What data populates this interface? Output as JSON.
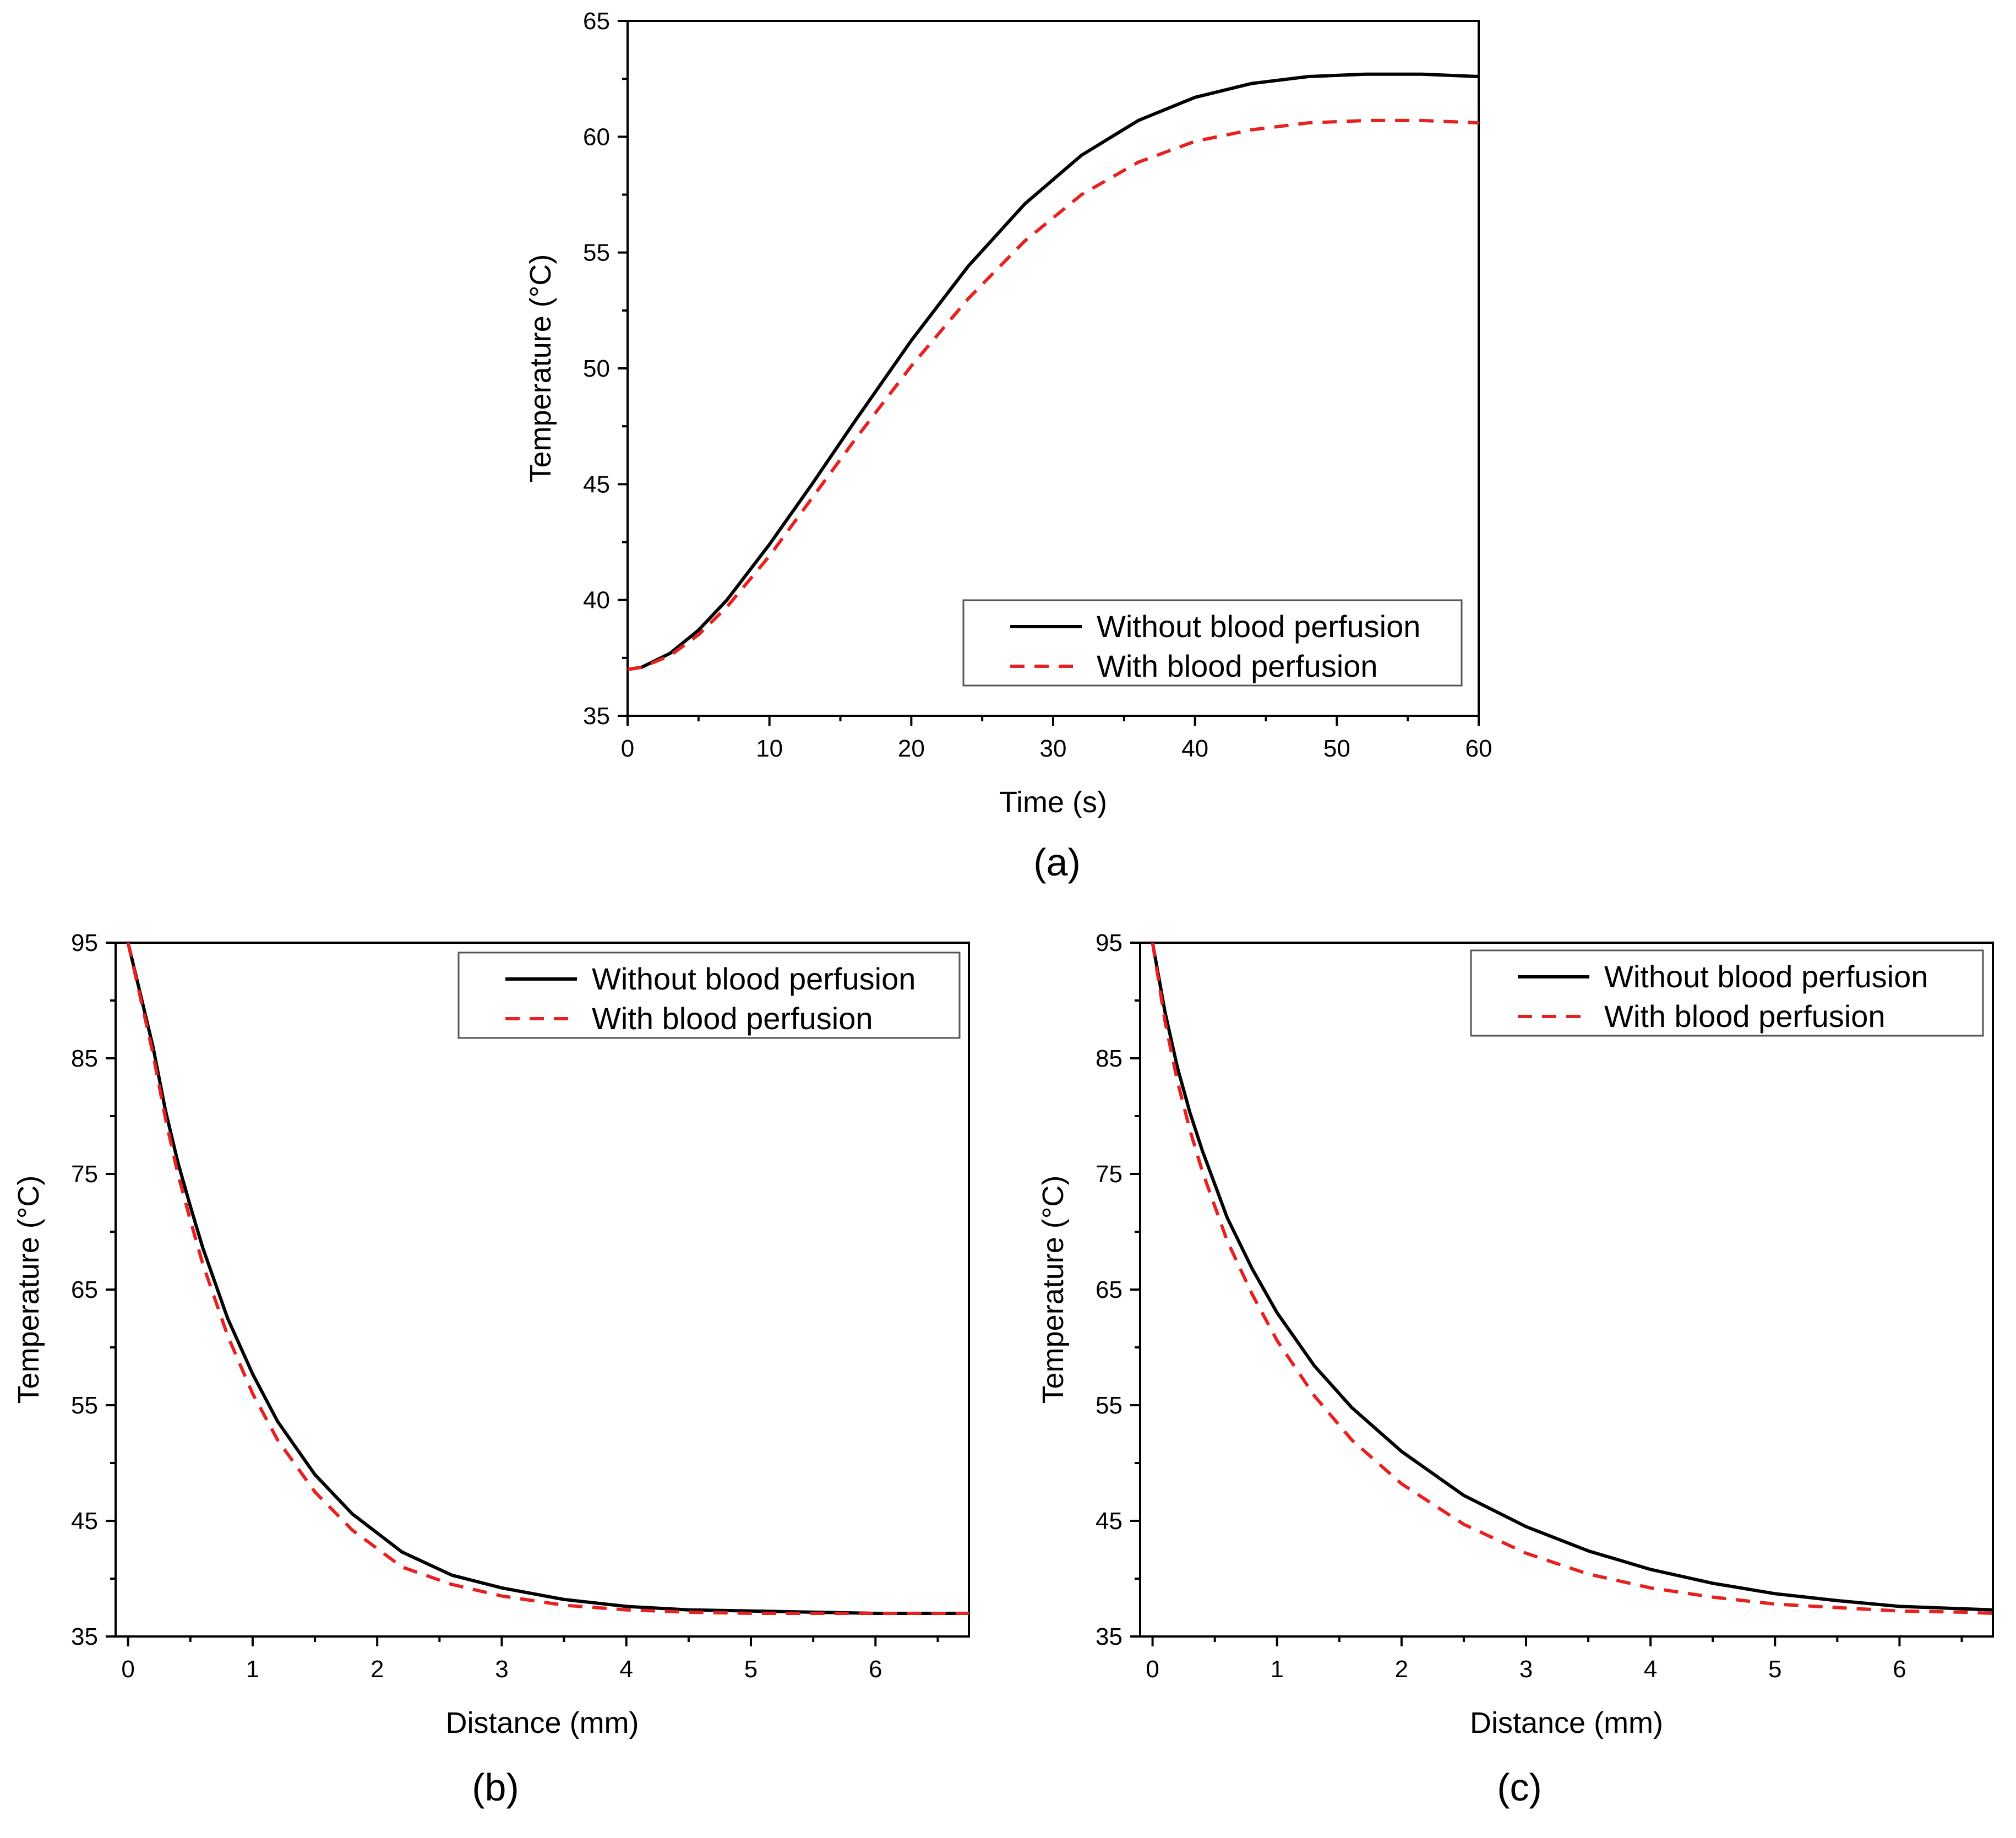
{
  "chart_data": [
    {
      "id": "a",
      "type": "line",
      "panel_label": "(a)",
      "title": "",
      "xlabel": "Time (s)",
      "ylabel": "Temperature (°C)",
      "xlim": [
        0,
        60
      ],
      "ylim": [
        35,
        65
      ],
      "xticks": [
        0,
        10,
        20,
        30,
        40,
        50,
        60
      ],
      "yticks": [
        35,
        40,
        45,
        50,
        55,
        60,
        65
      ],
      "grid": false,
      "legend_position": "bottom-right",
      "series": [
        {
          "name": "Without blood perfusion",
          "color": "#000000",
          "dash": "solid",
          "x": [
            0,
            1,
            3,
            5,
            7,
            10,
            13,
            16,
            20,
            24,
            28,
            32,
            36,
            40,
            44,
            48,
            52,
            56,
            60
          ],
          "y": [
            37.0,
            37.1,
            37.7,
            38.7,
            40.0,
            42.4,
            45.0,
            47.7,
            51.2,
            54.4,
            57.1,
            59.2,
            60.7,
            61.7,
            62.3,
            62.6,
            62.7,
            62.7,
            62.6
          ]
        },
        {
          "name": "With blood perfusion",
          "color": "#e8201f",
          "dash": "dashed",
          "x": [
            0,
            1,
            3,
            5,
            7,
            10,
            13,
            16,
            20,
            24,
            28,
            32,
            36,
            40,
            44,
            48,
            52,
            56,
            60
          ],
          "y": [
            37.0,
            37.1,
            37.6,
            38.5,
            39.7,
            41.9,
            44.4,
            46.9,
            50.1,
            53.0,
            55.5,
            57.5,
            58.9,
            59.8,
            60.3,
            60.6,
            60.7,
            60.7,
            60.6
          ]
        }
      ]
    },
    {
      "id": "b",
      "type": "line",
      "panel_label": "(b)",
      "title": "",
      "xlabel": "Distance (mm)",
      "ylabel": "Temperature (°C)",
      "xlim": [
        -0.1,
        6.75
      ],
      "ylim": [
        35,
        95
      ],
      "xticks": [
        0,
        1,
        2,
        3,
        4,
        5,
        6
      ],
      "yticks": [
        35,
        45,
        55,
        65,
        75,
        85,
        95
      ],
      "grid": false,
      "legend_position": "top-right",
      "series": [
        {
          "name": "Without blood perfusion",
          "color": "#000000",
          "dash": "solid",
          "x": [
            0,
            0.1,
            0.2,
            0.3,
            0.4,
            0.5,
            0.6,
            0.8,
            1.0,
            1.2,
            1.5,
            1.8,
            2.2,
            2.6,
            3.0,
            3.5,
            4.0,
            4.5,
            5.0,
            5.5,
            6.0,
            6.5,
            6.75
          ],
          "y": [
            95,
            90.5,
            86.0,
            80.5,
            76.0,
            72.2,
            68.6,
            62.5,
            57.7,
            53.6,
            49.0,
            45.6,
            42.3,
            40.3,
            39.2,
            38.2,
            37.6,
            37.3,
            37.2,
            37.1,
            37.0,
            37.0,
            37.0
          ]
        },
        {
          "name": "With blood perfusion",
          "color": "#e8201f",
          "dash": "dashed",
          "x": [
            0,
            0.1,
            0.2,
            0.3,
            0.4,
            0.5,
            0.6,
            0.8,
            1.0,
            1.2,
            1.5,
            1.8,
            2.2,
            2.6,
            3.0,
            3.5,
            4.0,
            4.5,
            5.0,
            5.5,
            6.0,
            6.5,
            6.75
          ],
          "y": [
            95,
            90.2,
            85.4,
            79.8,
            75.0,
            71.0,
            67.2,
            61.0,
            56.0,
            52.0,
            47.5,
            44.2,
            41.0,
            39.5,
            38.5,
            37.7,
            37.3,
            37.1,
            37.0,
            37.0,
            37.0,
            37.0,
            37.0
          ]
        }
      ]
    },
    {
      "id": "c",
      "type": "line",
      "panel_label": "(c)",
      "title": "",
      "xlabel": "Distance (mm)",
      "ylabel": "Temperature (°C)",
      "xlim": [
        -0.1,
        6.75
      ],
      "ylim": [
        35,
        95
      ],
      "xticks": [
        0,
        1,
        2,
        3,
        4,
        5,
        6
      ],
      "yticks": [
        35,
        45,
        55,
        65,
        75,
        85,
        95
      ],
      "grid": false,
      "legend_position": "top-right",
      "series": [
        {
          "name": "Without blood perfusion",
          "color": "#000000",
          "dash": "solid",
          "x": [
            0,
            0.1,
            0.2,
            0.3,
            0.4,
            0.6,
            0.8,
            1.0,
            1.3,
            1.6,
            2.0,
            2.5,
            3.0,
            3.5,
            4.0,
            4.5,
            5.0,
            5.5,
            6.0,
            6.5,
            6.75
          ],
          "y": [
            95,
            89.0,
            84.2,
            80.3,
            77.0,
            71.2,
            66.8,
            63.0,
            58.4,
            54.8,
            51.0,
            47.2,
            44.5,
            42.4,
            40.8,
            39.6,
            38.7,
            38.1,
            37.6,
            37.4,
            37.3
          ]
        },
        {
          "name": "With blood perfusion",
          "color": "#e8201f",
          "dash": "dashed",
          "x": [
            0,
            0.1,
            0.2,
            0.3,
            0.4,
            0.6,
            0.8,
            1.0,
            1.3,
            1.6,
            2.0,
            2.5,
            3.0,
            3.5,
            4.0,
            4.5,
            5.0,
            5.5,
            6.0,
            6.5,
            6.75
          ],
          "y": [
            95,
            88.2,
            83.0,
            78.8,
            75.2,
            69.2,
            64.6,
            60.6,
            55.8,
            52.0,
            48.2,
            44.7,
            42.2,
            40.4,
            39.2,
            38.4,
            37.8,
            37.5,
            37.2,
            37.1,
            37.0
          ]
        }
      ]
    }
  ]
}
